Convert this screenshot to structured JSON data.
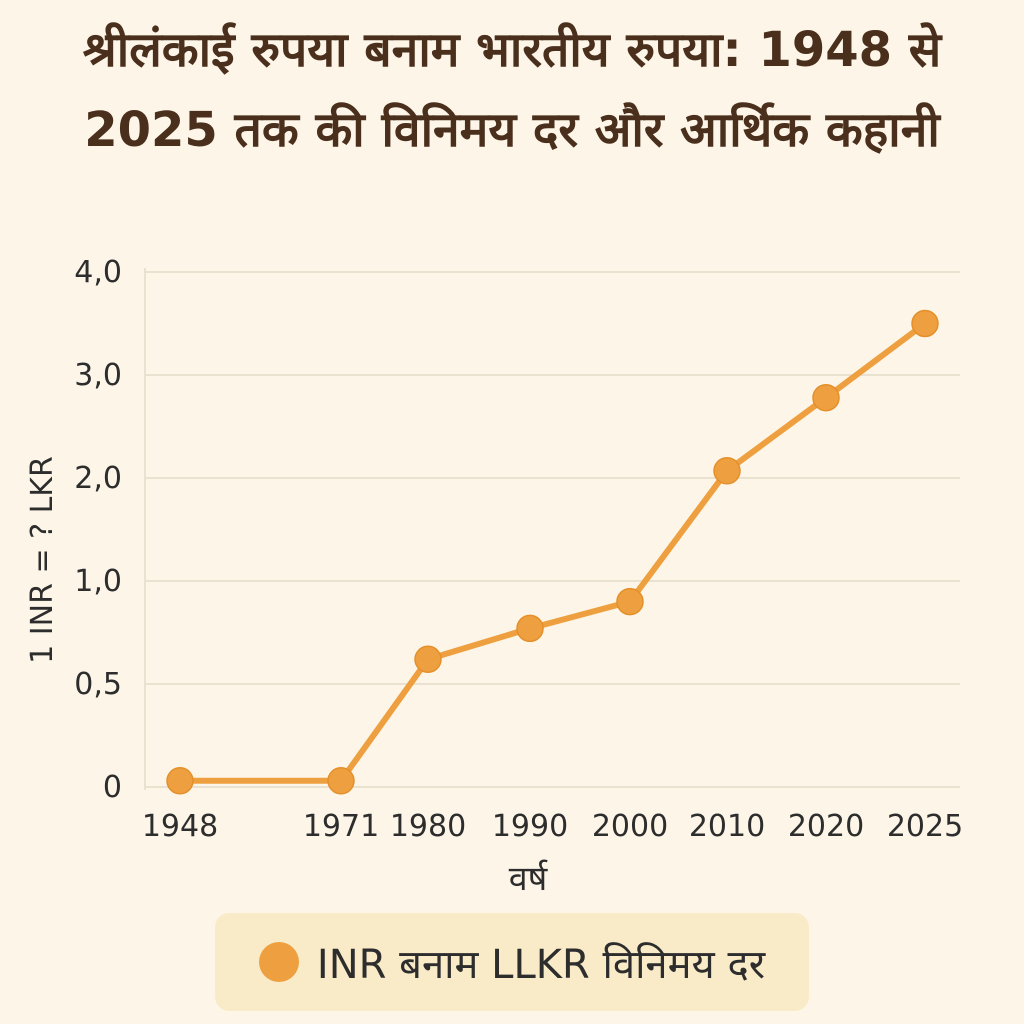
{
  "chart_data": {
    "type": "line",
    "title": "श्रीलंकाई रुपया बनाम भारतीय रुपया: 1948 से 2025 तक की विनिमय दर और आर्थिक कहानी",
    "xlabel": "वर्ष",
    "ylabel": "1 INR = ? LKR",
    "categories": [
      "1948",
      "1971",
      "1980",
      "1990",
      "2000",
      "2010",
      "2020",
      "2025"
    ],
    "y_ticks": [
      "4,0",
      "3,0",
      "2,0",
      "1,0",
      "0,5",
      "0"
    ],
    "series": [
      {
        "name": "INR बनाम LLKR विनिमय दर",
        "values": [
          0.03,
          0.03,
          0.62,
          0.77,
          0.9,
          2.07,
          2.78,
          3.5
        ],
        "color": "#eea040"
      }
    ],
    "grid": "horizontal",
    "legend_position": "bottom"
  }
}
